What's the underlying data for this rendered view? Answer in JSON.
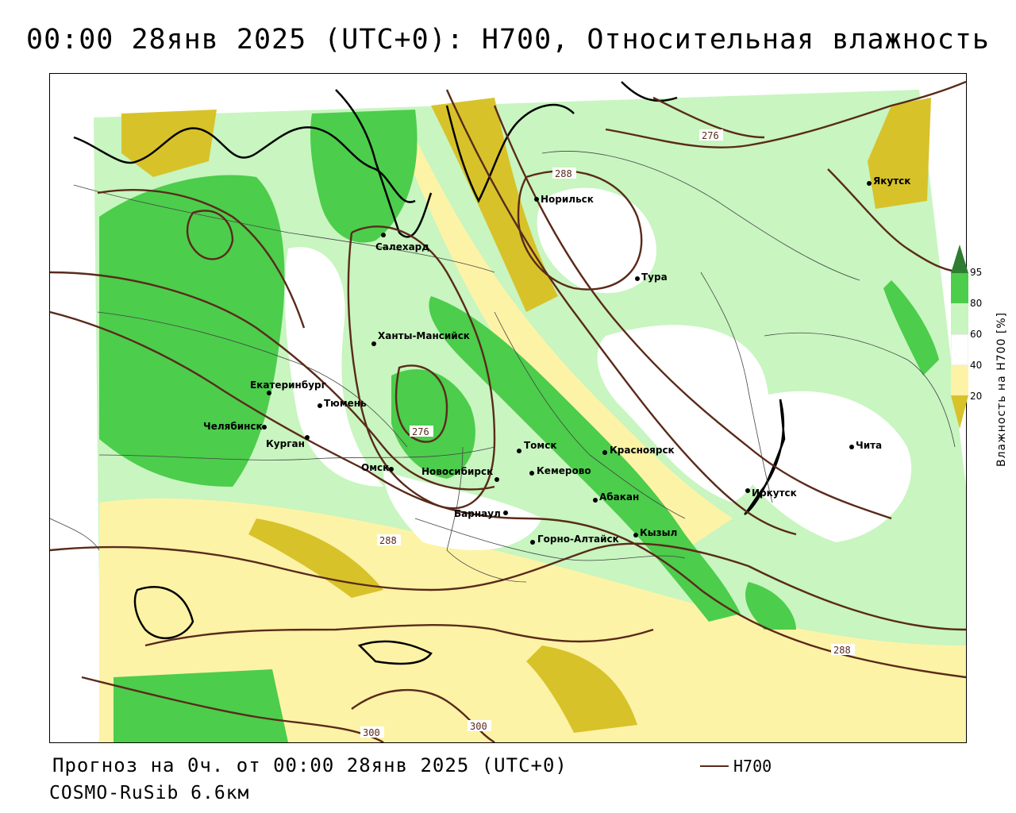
{
  "title": "00:00 28янв 2025 (UTC+0): H700, Относительная влажность",
  "footer": {
    "forecast": "Прогноз на 0ч. от 00:00 28янв 2025 (UTC+0)",
    "model": "COSMO-RuSib 6.6км"
  },
  "legend": {
    "line_label": "H700",
    "line_color": "#5a2a1a"
  },
  "colorbar": {
    "title": "Влажность на H700 [%]",
    "ticks": [
      "95",
      "80",
      "60",
      "40",
      "20"
    ],
    "colors": {
      "above_95": "#2e7d32",
      "80_95": "#4ccd4c",
      "60_80": "#c8f5c0",
      "40_60": "#ffffff",
      "20_40": "#fdf3a6",
      "below_20": "#d8c22a"
    }
  },
  "cities": [
    {
      "name": "Салехард"
    },
    {
      "name": "Норильск"
    },
    {
      "name": "Якутск"
    },
    {
      "name": "Тура"
    },
    {
      "name": "Ханты-Мансийск"
    },
    {
      "name": "Екатеринбург"
    },
    {
      "name": "Тюмень"
    },
    {
      "name": "Челябинск"
    },
    {
      "name": "Курган"
    },
    {
      "name": "Омск"
    },
    {
      "name": "Новосибирск"
    },
    {
      "name": "Томск"
    },
    {
      "name": "Кемерово"
    },
    {
      "name": "Красноярск"
    },
    {
      "name": "Абакан"
    },
    {
      "name": "Барнаул"
    },
    {
      "name": "Горно-Алтайск"
    },
    {
      "name": "Кызыл"
    },
    {
      "name": "Иркутск"
    },
    {
      "name": "Чита"
    }
  ],
  "contour_labels": [
    "276",
    "288",
    "276",
    "288",
    "288",
    "300",
    "300"
  ]
}
